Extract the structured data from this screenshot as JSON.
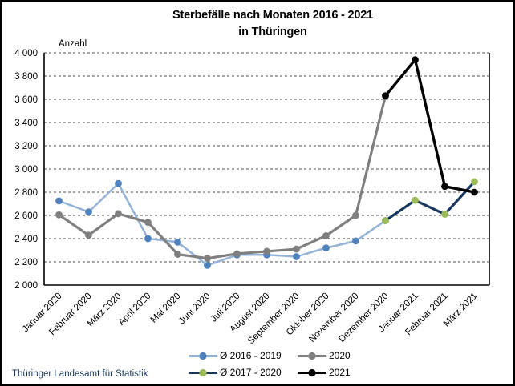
{
  "header": {
    "title_line1": "Sterbefälle nach Monaten 2016 - 2021",
    "title_line2": "in Thüringen"
  },
  "footer": {
    "source": "Thüringer Landesamt für Statistik"
  },
  "chart_data": {
    "type": "line",
    "title": "Sterbefälle nach Monaten 2016 - 2021 in Thüringen",
    "xlabel": "",
    "ylabel": "Anzahl",
    "ylim": [
      2000,
      4000
    ],
    "ytick_step": 200,
    "ytick_labels": [
      "2 000",
      "2 200",
      "2 400",
      "2 600",
      "2 800",
      "3 000",
      "3 200",
      "3 400",
      "3 600",
      "3 800",
      "4 000"
    ],
    "grid": "horizontal-dashed",
    "legend_position": "bottom",
    "categories": [
      "Januar 2020",
      "Februar 2020",
      "März 2020",
      "April 2020",
      "Mai 2020",
      "Juni 2020",
      "Juli 2020",
      "August 2020",
      "September 2020",
      "Oktober 2020",
      "November 2020",
      "Dezember 2020",
      "Januar 2021",
      "Februar 2021",
      "März 2021"
    ],
    "series": [
      {
        "name": "Ø 2016 - 2019",
        "line_color": "#95B3D7",
        "marker_color": "#4F81BD",
        "start_index": 0,
        "values": [
          2725,
          2630,
          2875,
          2400,
          2370,
          2170,
          2260,
          2260,
          2245,
          2320,
          2380,
          2555
        ]
      },
      {
        "name": "2020",
        "line_color": "#7F7F7F",
        "marker_color": "#7F7F7F",
        "start_index": 0,
        "values": [
          2605,
          2430,
          2615,
          2540,
          2265,
          2230,
          2270,
          2290,
          2310,
          2425,
          2600,
          3630
        ]
      },
      {
        "name": "Ø 2017 - 2020",
        "line_color": "#17375E",
        "marker_color": "#9BBB59",
        "start_index": 11,
        "values": [
          2555,
          2730,
          2610,
          2890
        ]
      },
      {
        "name": "2021",
        "line_color": "#000000",
        "marker_color": "#000000",
        "start_index": 11,
        "values": [
          3630,
          3940,
          2850,
          2800
        ]
      }
    ]
  }
}
